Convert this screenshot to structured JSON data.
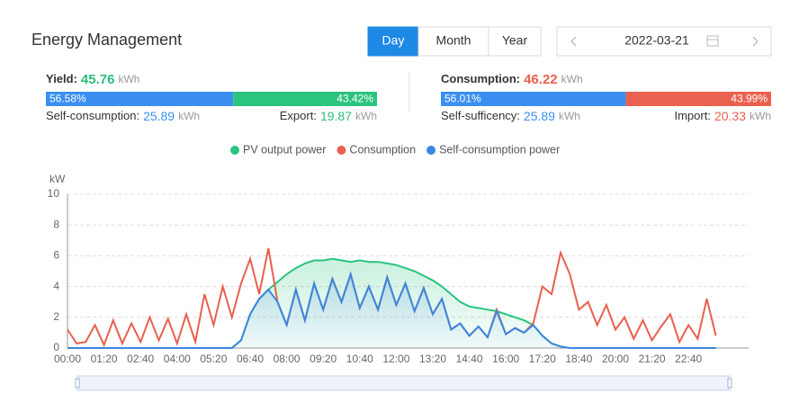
{
  "header": {
    "title": "Energy Management",
    "tabs": [
      "Day",
      "Month",
      "Year"
    ],
    "active_tab": 0,
    "date": "2022-03-21"
  },
  "yield": {
    "label": "Yield:",
    "value": "45.76",
    "unit": "kWh",
    "color": "#2bbd7e",
    "bar": {
      "values": [
        56.58,
        43.42
      ],
      "value_labels": [
        "56.58%",
        "43.42%"
      ],
      "colors": [
        "#3b8ff0",
        "#2bc47f"
      ]
    },
    "left": {
      "label": "Self-consumption:",
      "value": "25.89",
      "unit": "kWh",
      "color": "#3b8ff0"
    },
    "right": {
      "label": "Export:",
      "value": "19.87",
      "unit": "kWh",
      "color": "#2bbd7e"
    }
  },
  "consumption": {
    "label": "Consumption:",
    "value": "46.22",
    "unit": "kWh",
    "color": "#e8604f",
    "bar": {
      "values": [
        56.01,
        43.99
      ],
      "value_labels": [
        "56.01%",
        "43.99%"
      ],
      "colors": [
        "#3b8ff0",
        "#eb6150"
      ]
    },
    "left": {
      "label": "Self-sufficency:",
      "value": "25.89",
      "unit": "kWh",
      "color": "#3b8ff0"
    },
    "right": {
      "label": "Import:",
      "value": "20.33",
      "unit": "kWh",
      "color": "#e8604f"
    }
  },
  "chart_data": {
    "type": "line",
    "y_label": "kW",
    "ylim": [
      0,
      10
    ],
    "yticks": [
      0,
      2,
      4,
      6,
      8,
      10
    ],
    "grid": true,
    "legend": "top",
    "categories": [
      "00:00",
      null,
      null,
      null,
      "01:20",
      null,
      null,
      null,
      "02:40",
      null,
      null,
      null,
      "04:00",
      null,
      null,
      null,
      "05:20",
      null,
      null,
      null,
      "06:40",
      null,
      null,
      null,
      "08:00",
      null,
      null,
      null,
      "09:20",
      null,
      null,
      null,
      "10:40",
      null,
      null,
      null,
      "12:00",
      null,
      null,
      null,
      "13:20",
      null,
      null,
      null,
      "14:40",
      null,
      null,
      null,
      "16:00",
      null,
      null,
      null,
      "17:20",
      null,
      null,
      null,
      "18:40",
      null,
      null,
      null,
      "20:00",
      null,
      null,
      null,
      "21:20",
      null,
      null,
      null,
      "22:40",
      null,
      null,
      null
    ],
    "series": [
      {
        "name": "PV output power",
        "color": "#27c47d",
        "area": true,
        "values": [
          0,
          0,
          0,
          0,
          0,
          0,
          0,
          0,
          0,
          0,
          0,
          0,
          0,
          0,
          0,
          0,
          0,
          0,
          0,
          0.5,
          2.2,
          3.2,
          3.8,
          4.3,
          4.8,
          5.2,
          5.5,
          5.7,
          5.7,
          5.8,
          5.7,
          5.6,
          5.7,
          5.6,
          5.6,
          5.5,
          5.4,
          5.2,
          5.0,
          4.7,
          4.4,
          4.0,
          3.5,
          3.0,
          2.7,
          2.6,
          2.5,
          2.4,
          2.2,
          2.0,
          1.8,
          1.5,
          0.8,
          0.3,
          0.1,
          0,
          0,
          0,
          0,
          0,
          0,
          0,
          0,
          0,
          0,
          0,
          0,
          0,
          0,
          0,
          0,
          0
        ]
      },
      {
        "name": "Consumption",
        "color": "#e8604f",
        "area": false,
        "values": [
          1.2,
          0.3,
          0.4,
          1.5,
          0.2,
          1.8,
          0.3,
          1.6,
          0.4,
          2.0,
          0.5,
          1.9,
          0.3,
          2.2,
          0.4,
          3.5,
          1.5,
          4.0,
          2.0,
          4.2,
          5.8,
          3.5,
          6.5,
          3.0,
          1.5,
          3.8,
          1.8,
          4.2,
          2.5,
          4.5,
          3.0,
          4.8,
          2.6,
          4.0,
          2.5,
          4.6,
          2.8,
          4.2,
          2.4,
          3.9,
          2.2,
          3.2,
          1.2,
          1.6,
          0.8,
          1.4,
          0.7,
          2.5,
          0.9,
          1.3,
          1.0,
          1.6,
          4.0,
          3.5,
          6.2,
          4.8,
          2.5,
          3.0,
          1.5,
          2.8,
          1.2,
          2.0,
          0.6,
          1.8,
          0.5,
          1.4,
          2.2,
          0.4,
          1.5,
          0.6,
          3.2,
          0.8
        ]
      },
      {
        "name": "Self-consumption power",
        "color": "#3a86e0",
        "area": true,
        "values": [
          0,
          0,
          0,
          0,
          0,
          0,
          0,
          0,
          0,
          0,
          0,
          0,
          0,
          0,
          0,
          0,
          0,
          0,
          0,
          0.5,
          2.2,
          3.2,
          3.8,
          3.0,
          1.5,
          3.8,
          1.8,
          4.2,
          2.5,
          4.5,
          3.0,
          4.8,
          2.6,
          4.0,
          2.5,
          4.6,
          2.8,
          4.2,
          2.4,
          3.9,
          2.2,
          3.2,
          1.2,
          1.6,
          0.8,
          1.4,
          0.7,
          2.4,
          0.9,
          1.3,
          1.0,
          1.5,
          0.8,
          0.3,
          0.1,
          0,
          0,
          0,
          0,
          0,
          0,
          0,
          0,
          0,
          0,
          0,
          0,
          0,
          0,
          0,
          0,
          0
        ]
      }
    ]
  }
}
